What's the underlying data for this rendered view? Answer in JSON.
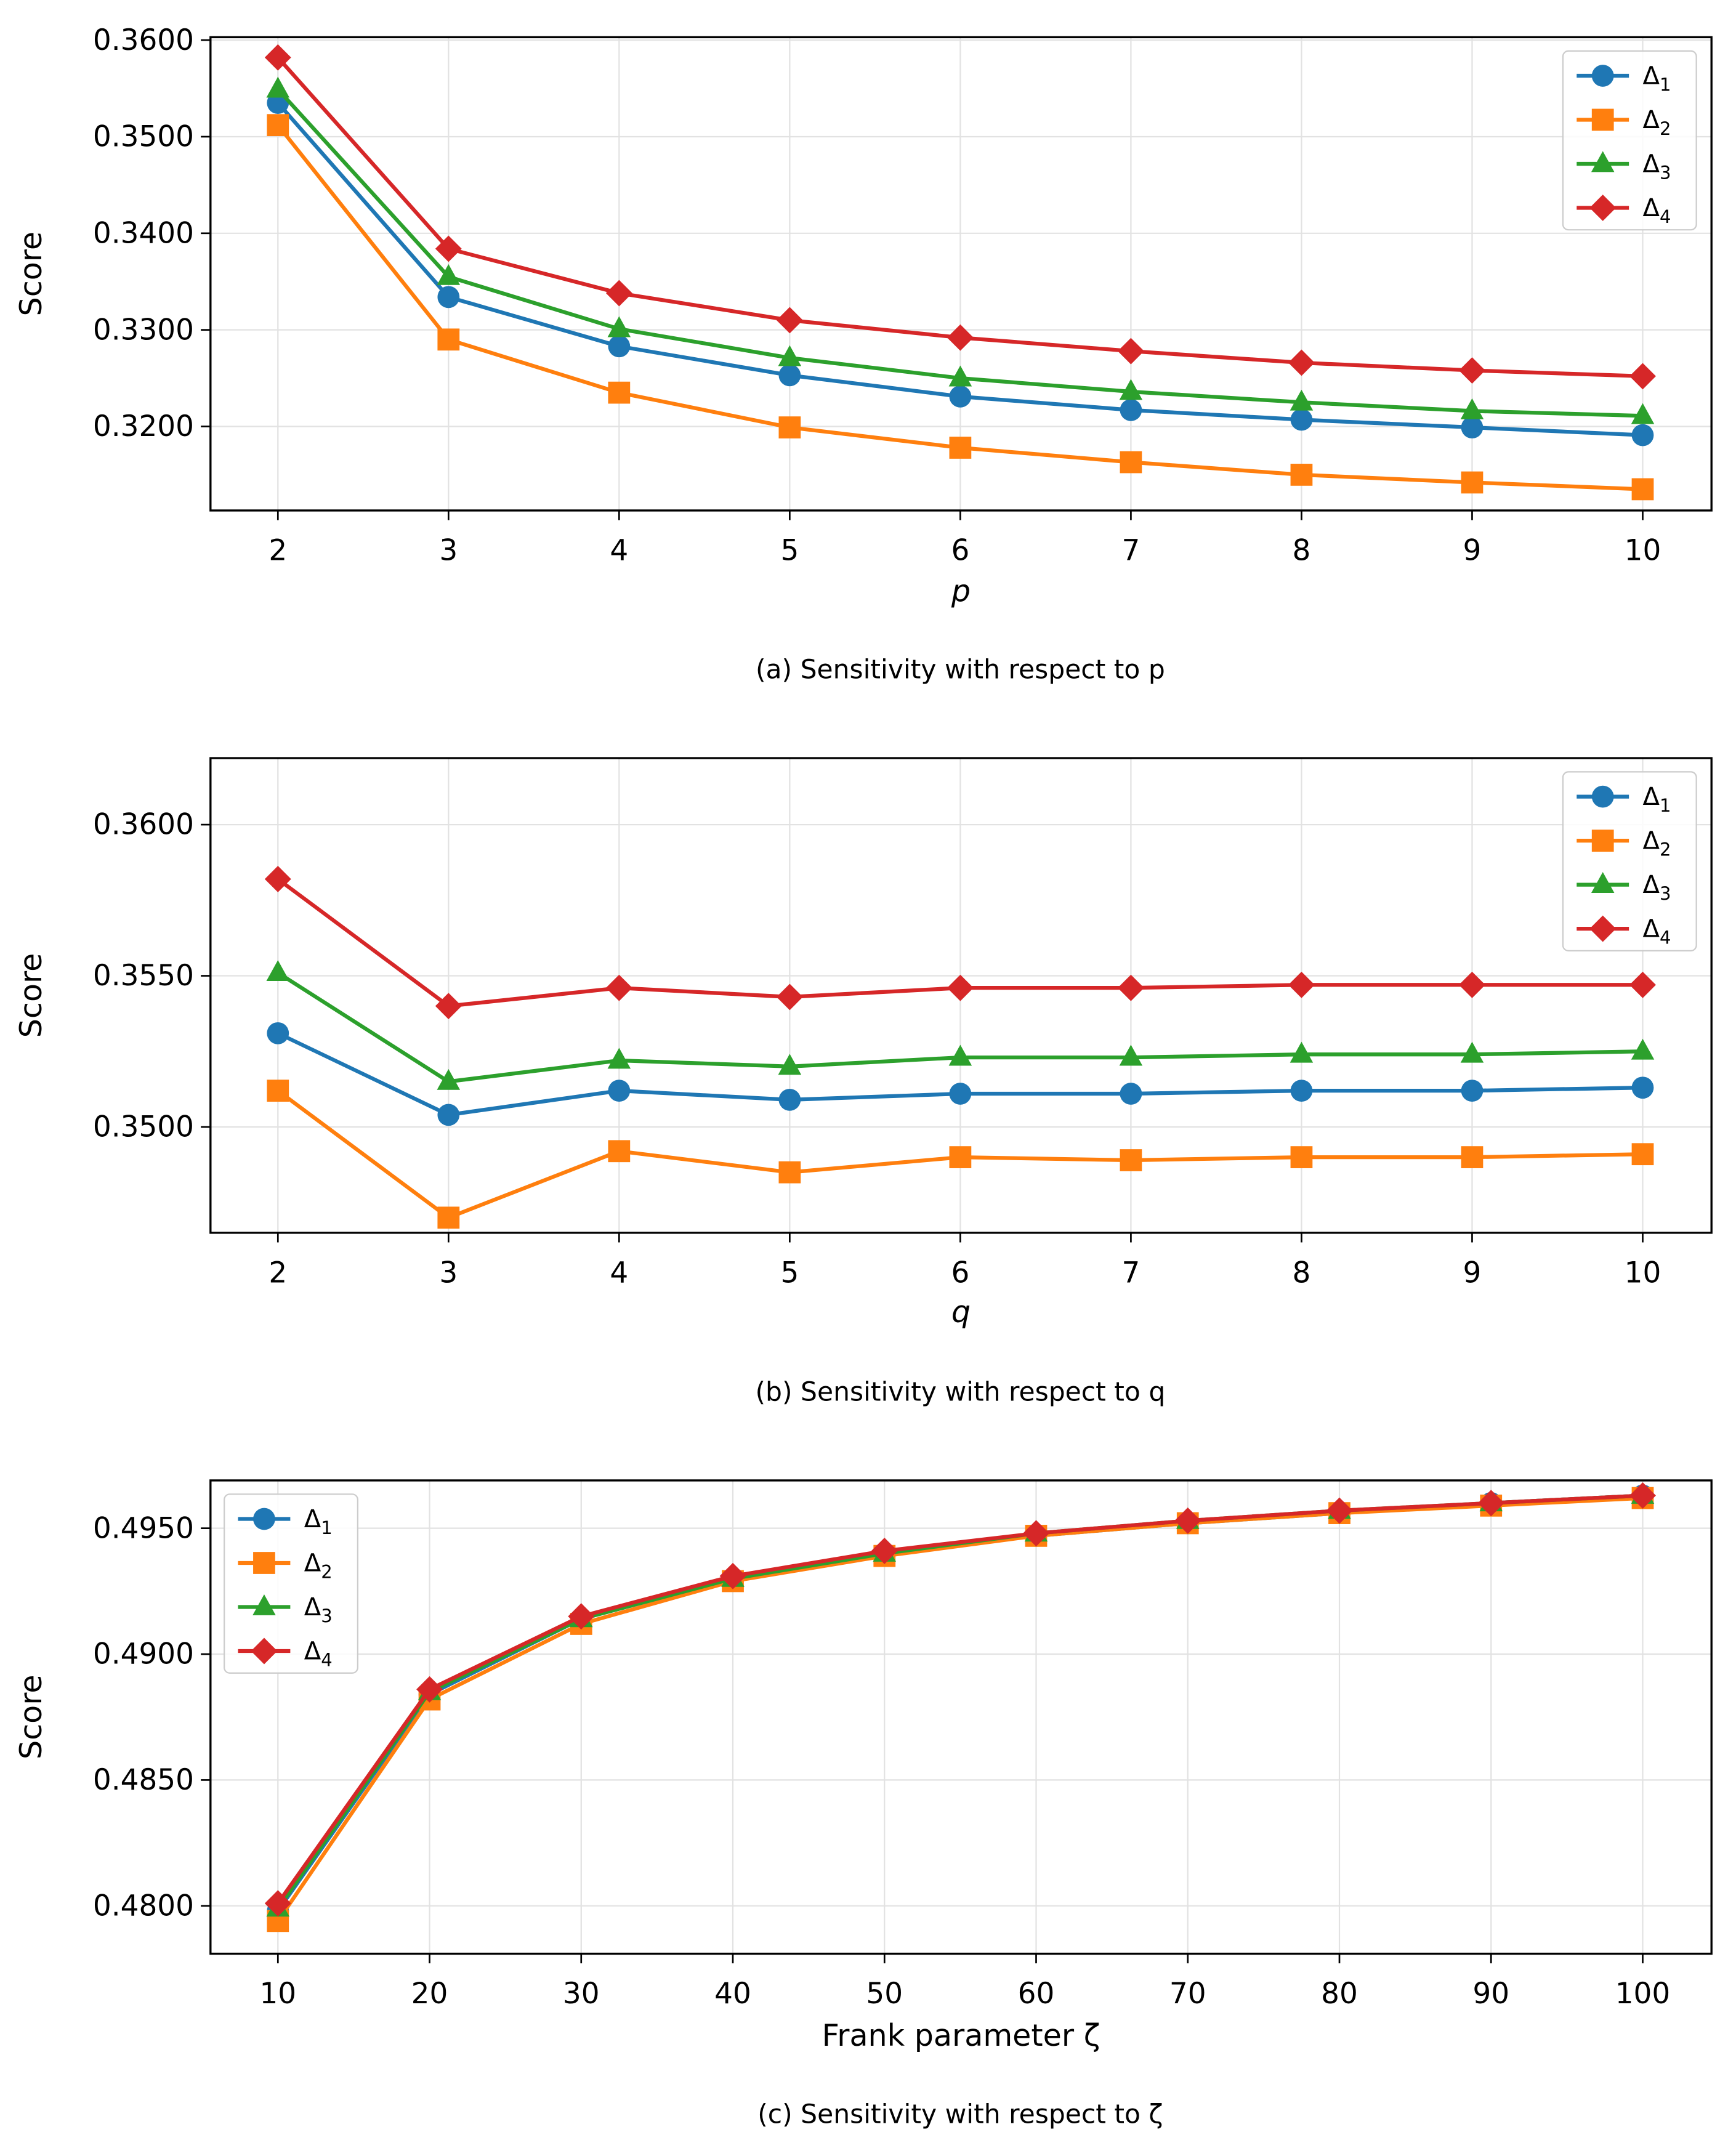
{
  "colors": {
    "d1": "#1f77b4",
    "d2": "#ff7f0e",
    "d3": "#2ca02c",
    "d4": "#d62728"
  },
  "legend": [
    "Δ1",
    "Δ2",
    "Δ3",
    "Δ4"
  ],
  "chart_data": [
    {
      "type": "line",
      "caption": "(a) Sensitivity with respect to p",
      "caption_var": "p",
      "xlabel": "p",
      "ylabel": "Score",
      "x": [
        2,
        3,
        4,
        5,
        6,
        7,
        8,
        9,
        10
      ],
      "xticks": [
        "2",
        "3",
        "4",
        "5",
        "6",
        "7",
        "8",
        "9",
        "10"
      ],
      "yticks": [
        0.32,
        0.33,
        0.34,
        0.35,
        0.36
      ],
      "ytick_labels": [
        "0.3200",
        "0.3300",
        "0.3400",
        "0.3500",
        "0.3600"
      ],
      "ylim": [
        0.3113,
        0.3603
      ],
      "legend_position": "top-right",
      "grid": true,
      "series": [
        {
          "name": "Δ1",
          "marker": "circle",
          "values": [
            0.3535,
            0.3334,
            0.3283,
            0.3253,
            0.3231,
            0.3217,
            0.3207,
            0.3199,
            0.3191
          ]
        },
        {
          "name": "Δ2",
          "marker": "square",
          "values": [
            0.3512,
            0.329,
            0.3235,
            0.3199,
            0.3178,
            0.3163,
            0.315,
            0.3142,
            0.3135
          ]
        },
        {
          "name": "Δ3",
          "marker": "triangle",
          "values": [
            0.3549,
            0.3355,
            0.3301,
            0.3271,
            0.325,
            0.3236,
            0.3225,
            0.3216,
            0.3211
          ]
        },
        {
          "name": "Δ4",
          "marker": "diamond",
          "values": [
            0.3582,
            0.3384,
            0.3338,
            0.331,
            0.3292,
            0.3278,
            0.3266,
            0.3258,
            0.3252
          ]
        }
      ]
    },
    {
      "type": "line",
      "caption": "(b) Sensitivity with respect to q",
      "caption_var": "q",
      "xlabel": "q",
      "ylabel": "Score",
      "x": [
        2,
        3,
        4,
        5,
        6,
        7,
        8,
        9,
        10
      ],
      "xticks": [
        "2",
        "3",
        "4",
        "5",
        "6",
        "7",
        "8",
        "9",
        "10"
      ],
      "yticks": [
        0.35,
        0.355,
        0.36
      ],
      "ytick_labels": [
        "0.3500",
        "0.3550",
        "0.3600"
      ],
      "ylim": [
        0.3465,
        0.3622
      ],
      "legend_position": "top-right",
      "grid": true,
      "series": [
        {
          "name": "Δ1",
          "marker": "circle",
          "values": [
            0.3531,
            0.3504,
            0.3512,
            0.3509,
            0.3511,
            0.3511,
            0.3512,
            0.3512,
            0.3513
          ]
        },
        {
          "name": "Δ2",
          "marker": "square",
          "values": [
            0.3512,
            0.347,
            0.3492,
            0.3485,
            0.349,
            0.3489,
            0.349,
            0.349,
            0.3491
          ]
        },
        {
          "name": "Δ3",
          "marker": "triangle",
          "values": [
            0.3551,
            0.3515,
            0.3522,
            0.352,
            0.3523,
            0.3523,
            0.3524,
            0.3524,
            0.3525
          ]
        },
        {
          "name": "Δ4",
          "marker": "diamond",
          "values": [
            0.3582,
            0.354,
            0.3546,
            0.3543,
            0.3546,
            0.3546,
            0.3547,
            0.3547,
            0.3547
          ]
        }
      ]
    },
    {
      "type": "line",
      "caption": "(c) Sensitivity with respect to ζ",
      "caption_var": "ζ",
      "xlabel": "Frank parameter ζ",
      "ylabel": "Score",
      "x": [
        10,
        20,
        30,
        40,
        50,
        60,
        70,
        80,
        90,
        100
      ],
      "xticks": [
        "10",
        "20",
        "30",
        "40",
        "50",
        "60",
        "70",
        "80",
        "90",
        "100"
      ],
      "yticks": [
        0.48,
        0.485,
        0.49,
        0.495
      ],
      "ytick_labels": [
        "0.4800",
        "0.4850",
        "0.4900",
        "0.4950"
      ],
      "ylim": [
        0.4781,
        0.4969
      ],
      "legend_position": "top-left",
      "grid": true,
      "series": [
        {
          "name": "Δ1",
          "marker": "circle",
          "values": [
            0.4798,
            0.4884,
            0.4914,
            0.493,
            0.494,
            0.4947,
            0.4952,
            0.4956,
            0.496,
            0.4963
          ]
        },
        {
          "name": "Δ2",
          "marker": "square",
          "values": [
            0.4794,
            0.4882,
            0.4912,
            0.4929,
            0.4939,
            0.4947,
            0.4952,
            0.4956,
            0.4959,
            0.4962
          ]
        },
        {
          "name": "Δ3",
          "marker": "triangle",
          "values": [
            0.4799,
            0.4885,
            0.4914,
            0.493,
            0.494,
            0.4948,
            0.4953,
            0.4957,
            0.496,
            0.4963
          ]
        },
        {
          "name": "Δ4",
          "marker": "diamond",
          "values": [
            0.4801,
            0.4886,
            0.4915,
            0.4931,
            0.4941,
            0.4948,
            0.4953,
            0.4957,
            0.496,
            0.4963
          ]
        }
      ]
    }
  ]
}
